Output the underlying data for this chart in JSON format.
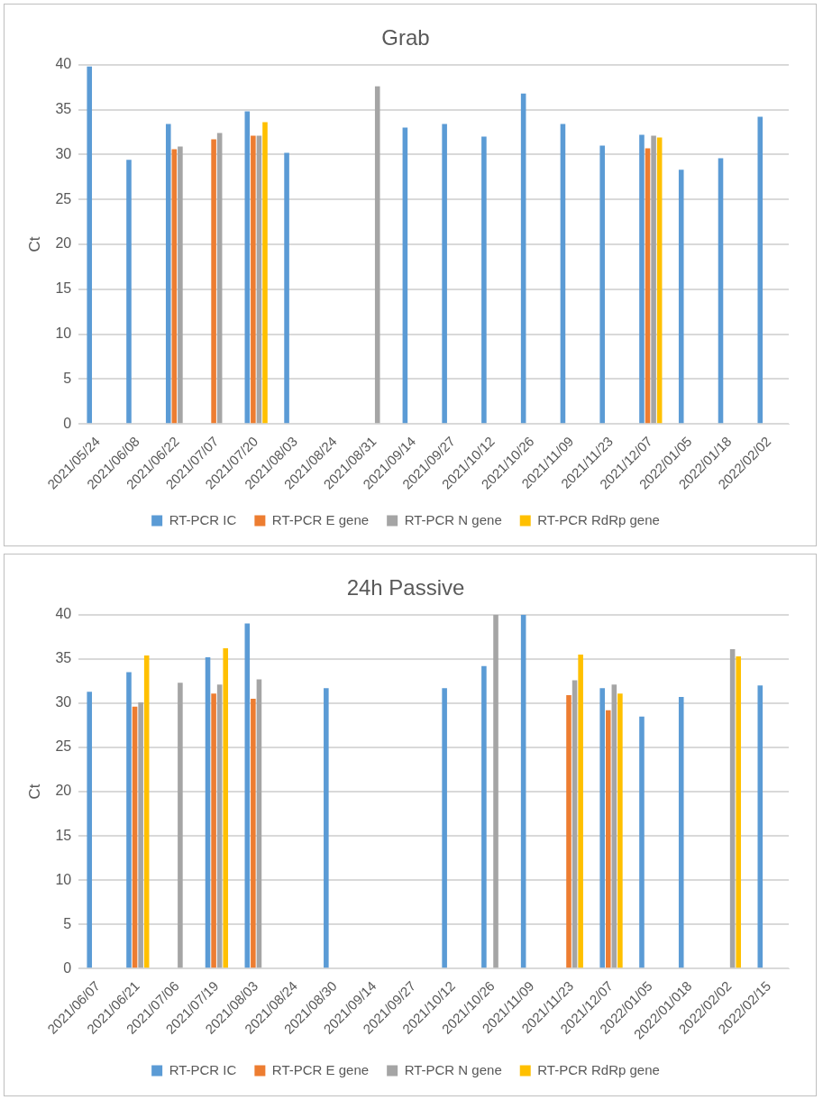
{
  "chart_data": [
    {
      "type": "bar",
      "title": "Grab",
      "ylabel": "Ct",
      "categories": [
        "2021/05/24",
        "2021/06/08",
        "2021/06/22",
        "2021/07/07",
        "2021/07/20",
        "2021/08/03",
        "2021/08/24",
        "2021/08/31",
        "2021/09/14",
        "2021/09/27",
        "2021/10/12",
        "2021/10/26",
        "2021/11/09",
        "2021/11/23",
        "2021/12/07",
        "2022/01/05",
        "2022/01/18",
        "2022/02/02"
      ],
      "series": [
        {
          "name": "RT-PCR IC",
          "color": "#5b9bd5",
          "values": [
            39.8,
            29.4,
            33.4,
            null,
            34.8,
            30.2,
            null,
            null,
            33.0,
            33.4,
            32.0,
            36.8,
            33.4,
            31.0,
            32.2,
            28.3,
            29.6,
            34.2
          ]
        },
        {
          "name": "RT-PCR E gene",
          "color": "#ed7d31",
          "values": [
            null,
            null,
            30.6,
            31.7,
            32.1,
            null,
            null,
            null,
            null,
            null,
            null,
            null,
            null,
            null,
            30.7,
            null,
            null,
            null
          ]
        },
        {
          "name": "RT-PCR N gene",
          "color": "#a5a5a5",
          "values": [
            null,
            null,
            30.9,
            32.4,
            32.1,
            null,
            null,
            37.6,
            null,
            null,
            null,
            null,
            null,
            null,
            32.1,
            null,
            null,
            null
          ]
        },
        {
          "name": "RT-PCR RdRp gene",
          "color": "#ffc000",
          "values": [
            null,
            null,
            null,
            null,
            33.6,
            null,
            null,
            null,
            null,
            null,
            null,
            null,
            null,
            null,
            31.9,
            null,
            null,
            null
          ]
        }
      ],
      "ylim": [
        0,
        40
      ],
      "yticks": [
        0,
        5,
        10,
        15,
        20,
        25,
        30,
        35,
        40
      ],
      "grid": "y",
      "legend": "bottom"
    },
    {
      "type": "bar",
      "title": "24h Passive",
      "ylabel": "Ct",
      "categories": [
        "2021/06/07",
        "2021/06/21",
        "2021/07/06",
        "2021/07/19",
        "2021/08/03",
        "2021/08/24",
        "2021/08/30",
        "2021/09/14",
        "2021/09/27",
        "2021/10/12",
        "2021/10/26",
        "2021/11/09",
        "2021/11/23",
        "2021/12/07",
        "2022/01/05",
        "2022/01/018",
        "2022/02/02",
        "2022/02/15"
      ],
      "series": [
        {
          "name": "RT-PCR IC",
          "color": "#5b9bd5",
          "values": [
            31.3,
            33.5,
            null,
            35.2,
            39.0,
            null,
            31.7,
            null,
            null,
            31.7,
            34.2,
            40.0,
            null,
            31.7,
            28.5,
            30.7,
            null,
            32.0
          ]
        },
        {
          "name": "RT-PCR E gene",
          "color": "#ed7d31",
          "values": [
            null,
            29.6,
            null,
            31.1,
            30.5,
            null,
            null,
            null,
            null,
            null,
            null,
            null,
            30.9,
            29.2,
            null,
            null,
            null,
            null
          ]
        },
        {
          "name": "RT-PCR N gene",
          "color": "#a5a5a5",
          "values": [
            null,
            30.1,
            32.3,
            32.1,
            32.7,
            null,
            null,
            null,
            null,
            null,
            40.0,
            null,
            32.6,
            32.1,
            null,
            null,
            36.1,
            null
          ]
        },
        {
          "name": "RT-PCR RdRp gene",
          "color": "#ffc000",
          "values": [
            null,
            35.4,
            null,
            36.2,
            null,
            null,
            null,
            null,
            null,
            null,
            null,
            null,
            35.5,
            31.1,
            null,
            null,
            35.3,
            null
          ]
        }
      ],
      "ylim": [
        0,
        40
      ],
      "yticks": [
        0,
        5,
        10,
        15,
        20,
        25,
        30,
        35,
        40
      ],
      "grid": "y",
      "legend": "bottom"
    }
  ]
}
